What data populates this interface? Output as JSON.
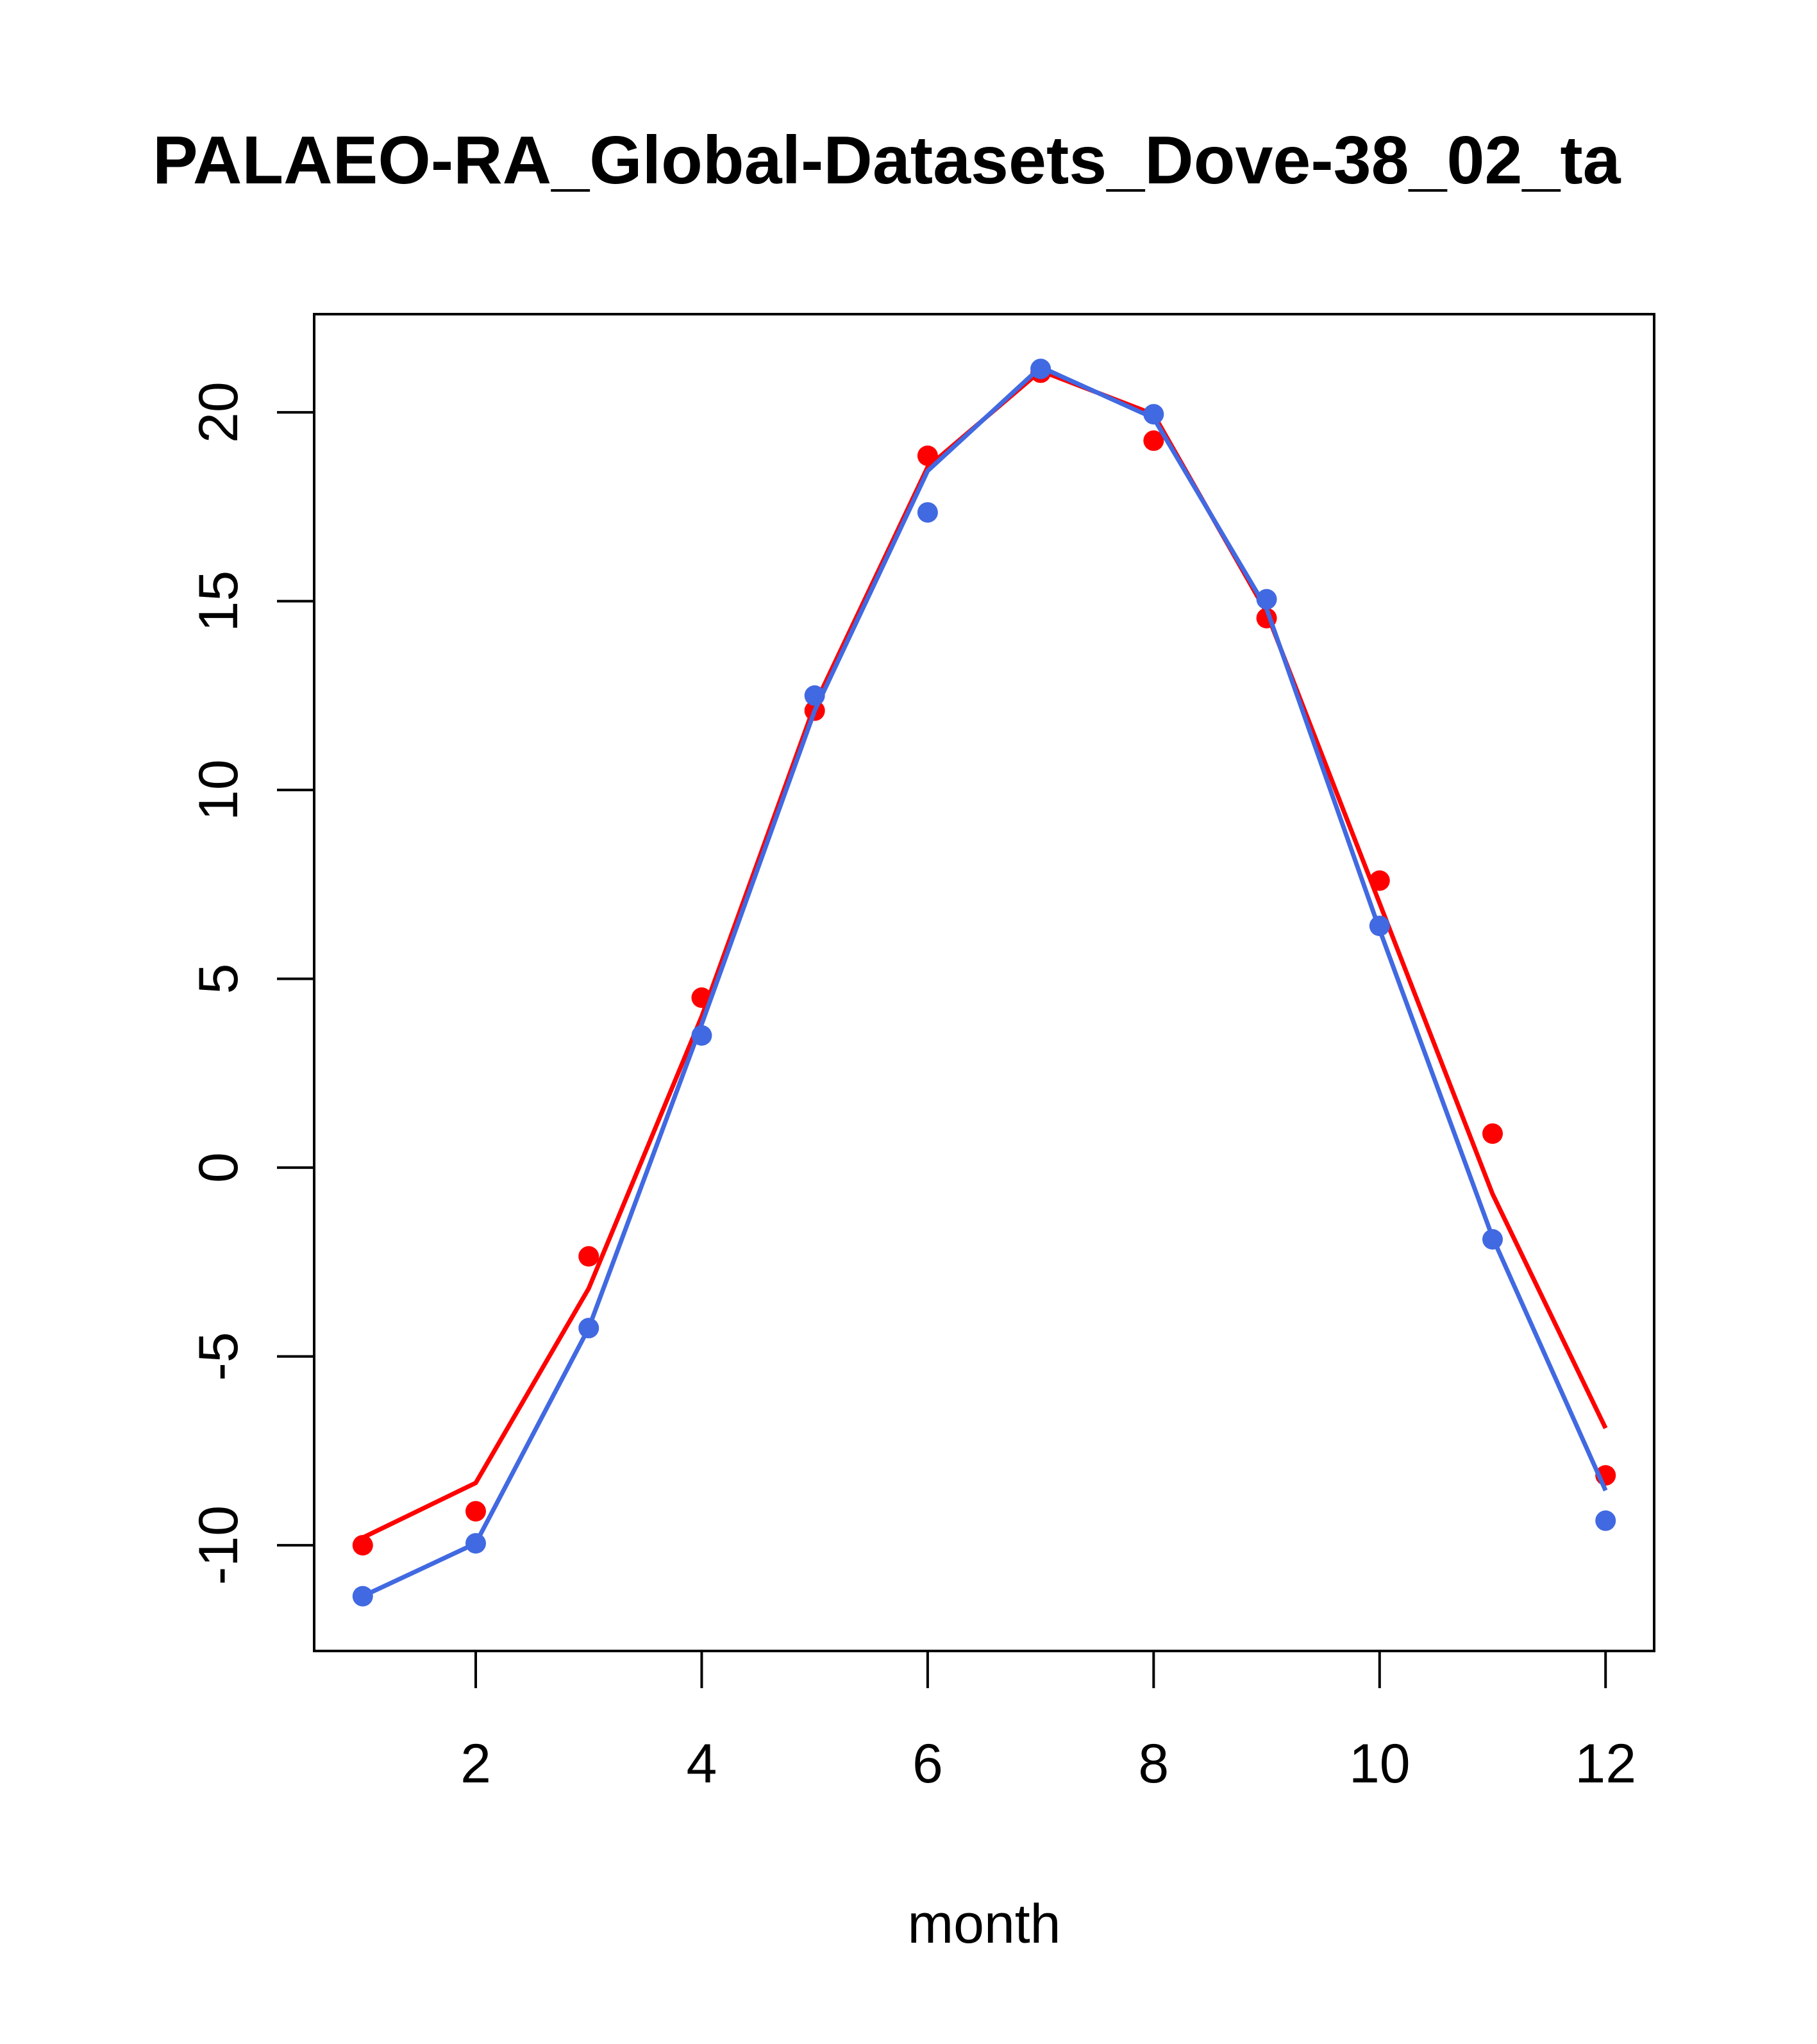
{
  "chart_data": {
    "type": "line",
    "title": "PALAEO-RA_Global-Datasets_Dove-38_02_ta",
    "xlabel": "month",
    "ylabel": "",
    "xlim": [
      0.57,
      12.43
    ],
    "ylim": [
      -12.8,
      22.6
    ],
    "x_ticks": [
      2,
      4,
      6,
      8,
      10,
      12
    ],
    "y_ticks": [
      -10,
      -5,
      0,
      5,
      10,
      15,
      20
    ],
    "x_tick_labels": [
      "2",
      "4",
      "6",
      "8",
      "10",
      "12"
    ],
    "y_tick_labels": [
      "-10",
      "-5",
      "0",
      "5",
      "10",
      "15",
      "20"
    ],
    "grid": false,
    "legend": "none",
    "x": [
      1,
      2,
      3,
      4,
      5,
      6,
      7,
      8,
      9,
      10,
      11,
      12
    ],
    "series": [
      {
        "color": "#ff0000",
        "points": [
          -10.0,
          -9.1,
          -2.35,
          4.5,
          12.1,
          18.85,
          21.05,
          19.25,
          14.55,
          7.6,
          0.9,
          -8.15
        ],
        "line": [
          -9.8,
          -8.35,
          -3.2,
          4.0,
          12.25,
          18.55,
          21.1,
          19.95,
          14.7,
          7.0,
          -0.7,
          -6.9
        ]
      },
      {
        "color": "#4169e1",
        "points": [
          -11.35,
          -9.95,
          -4.25,
          3.5,
          12.5,
          17.35,
          21.15,
          19.95,
          15.05,
          6.4,
          -1.9,
          -9.35
        ],
        "line": [
          -11.35,
          -9.95,
          -4.25,
          3.8,
          12.1,
          18.45,
          21.2,
          19.85,
          14.8,
          6.3,
          -1.85,
          -8.55
        ]
      }
    ]
  }
}
